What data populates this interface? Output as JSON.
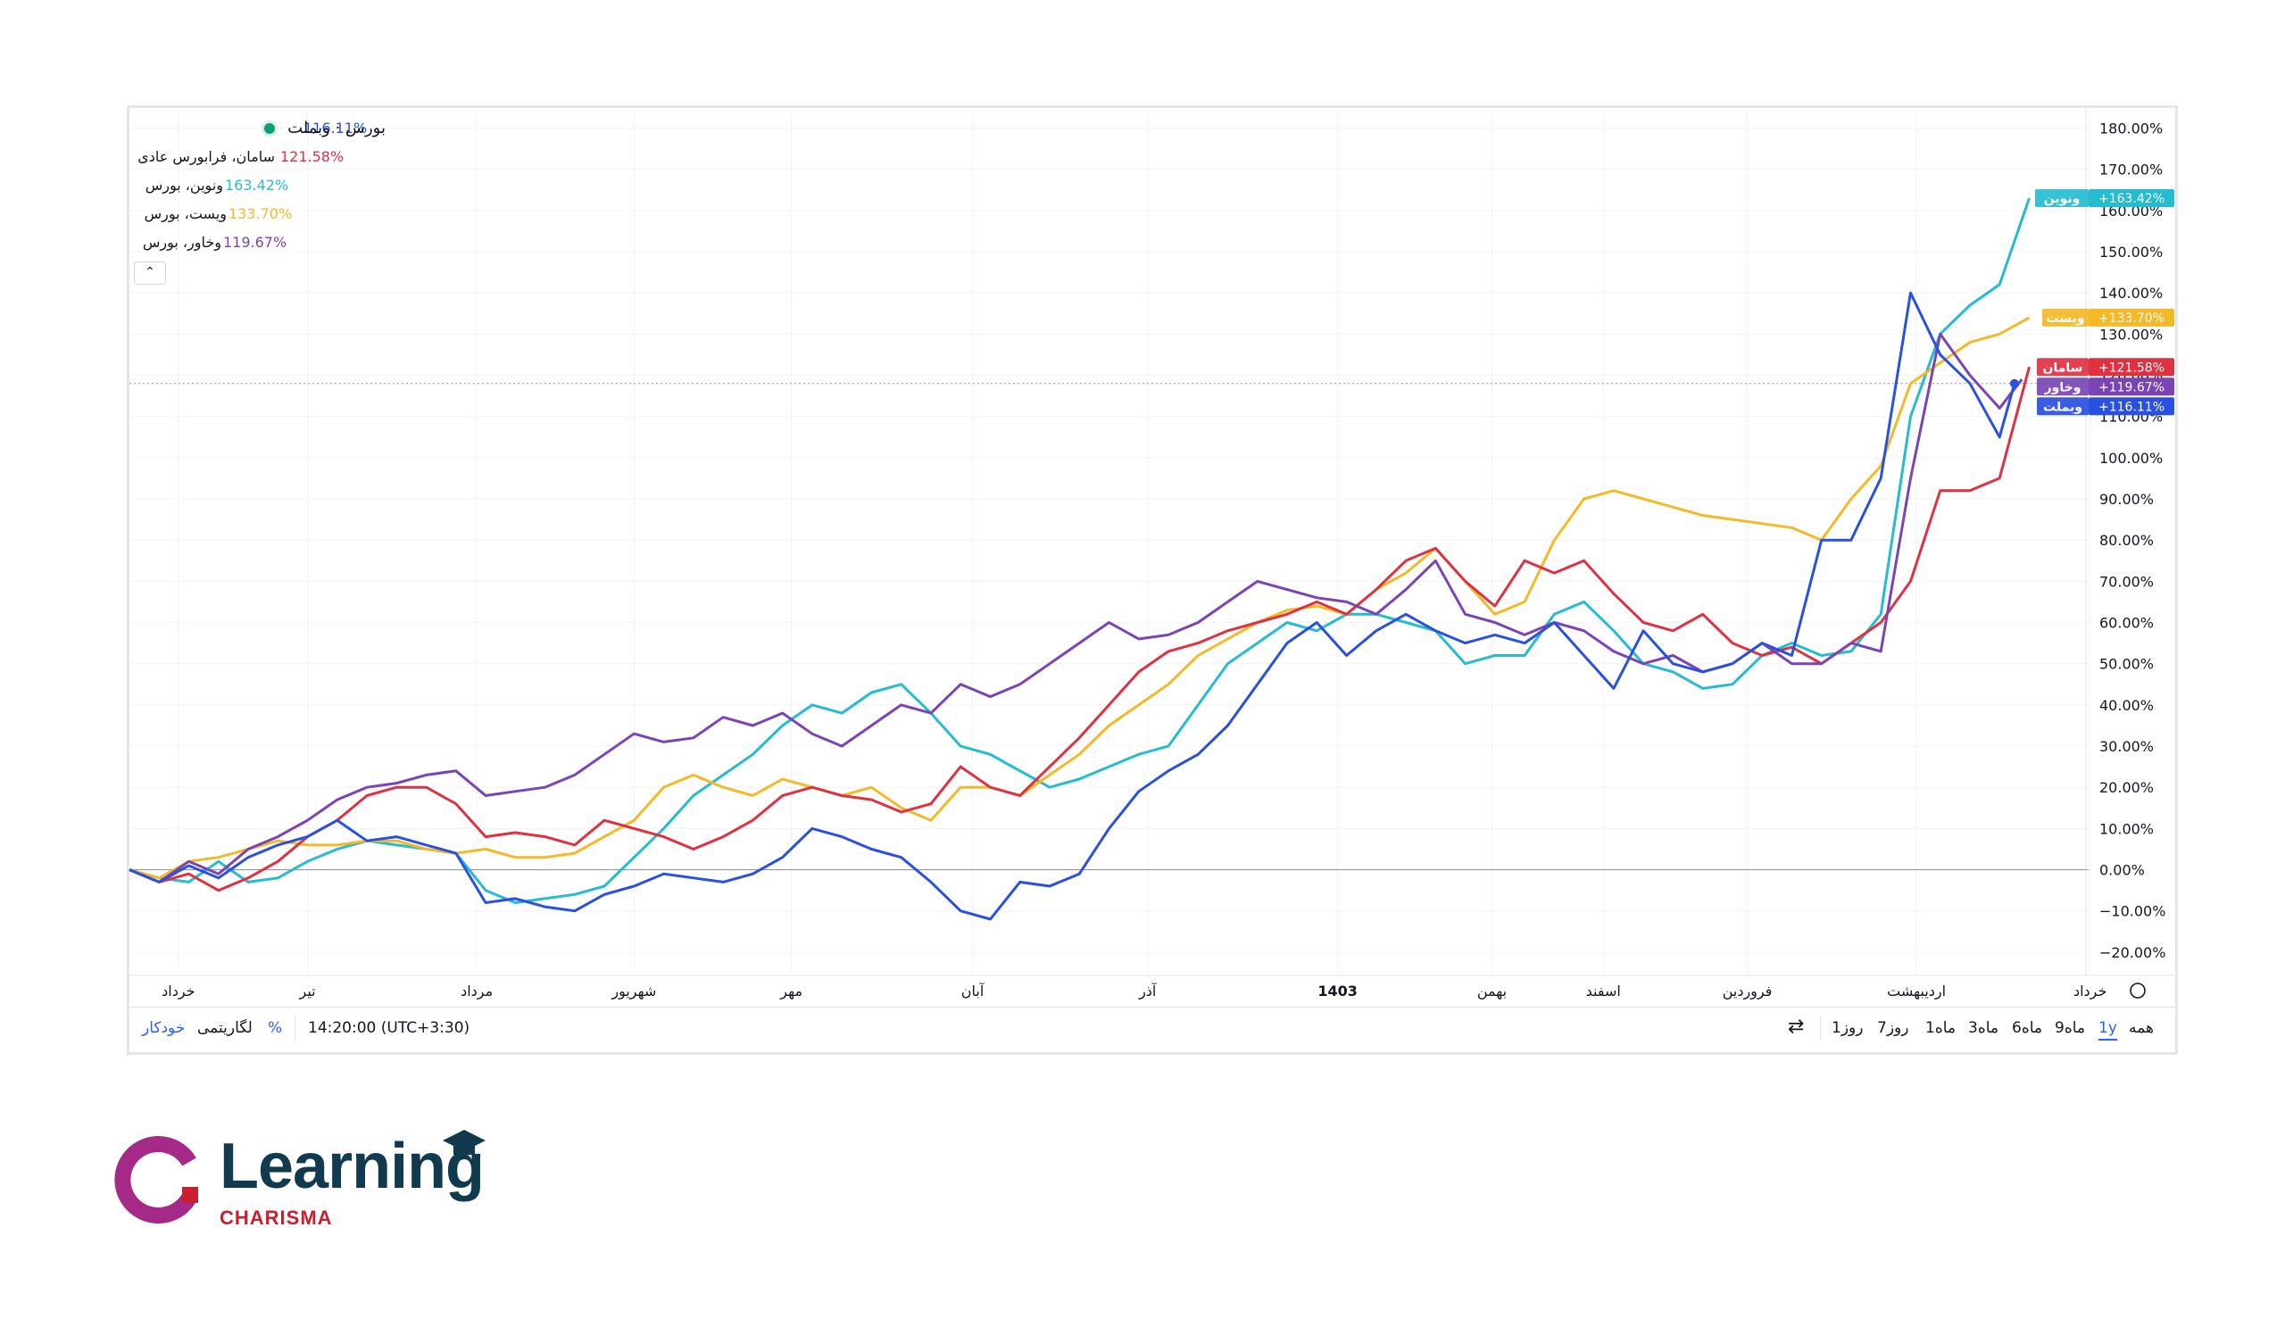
{
  "legend": {
    "main_symbol": "بورس · وبملت",
    "main_value": "116.11%",
    "rows": [
      {
        "name": "سامان، فرابورس عادی",
        "value": "121.58%",
        "color": "#e03143"
      },
      {
        "name": "ونوین، بورس",
        "value": "163.42%",
        "color": "#26bcd0"
      },
      {
        "name": "ویست، بورس",
        "value": "133.70%",
        "color": "#f3b928"
      },
      {
        "name": "وخاور، بورس",
        "value": "119.67%",
        "color": "#7a44b5"
      }
    ],
    "collapse_label": "⌃"
  },
  "bottom_bar": {
    "ranges": [
      "همه",
      "1y",
      "9ماه",
      "6ماه",
      "3ماه",
      "1ماه",
      "7روز",
      "1روز"
    ],
    "active_range": "1y",
    "time": "14:20:00 (UTC+3:30)",
    "percent": "%",
    "log": "لگاریتمی",
    "auto": "خودکار"
  },
  "logo": {
    "title": "Learning",
    "subtitle": "CHARISMA"
  },
  "chart_data": {
    "type": "line",
    "ylim": [
      -25,
      184
    ],
    "y_ticks": [
      180,
      170,
      160,
      150,
      140,
      130,
      120,
      110,
      100,
      90,
      80,
      70,
      60,
      50,
      40,
      30,
      20,
      10,
      0,
      -10,
      -20
    ],
    "y_tick_labels": [
      "180.00%",
      "170.00%",
      "160.00%",
      "150.00%",
      "140.00%",
      "130.00%",
      "120.00%",
      "110.00%",
      "100.00%",
      "90.00%",
      "80.00%",
      "70.00%",
      "60.00%",
      "50.00%",
      "40.00%",
      "30.00%",
      "20.00%",
      "10.00%",
      "0.00%",
      "−10.00%",
      "−20.00%"
    ],
    "x_range": [
      0,
      1320
    ],
    "x_ticks": [
      {
        "x": 33,
        "label": "خرداد"
      },
      {
        "x": 120,
        "label": "تیر"
      },
      {
        "x": 234,
        "label": "مرداد"
      },
      {
        "x": 340,
        "label": "شهریور"
      },
      {
        "x": 446,
        "label": "مهر"
      },
      {
        "x": 568,
        "label": "آبان"
      },
      {
        "x": 686,
        "label": "آذر"
      },
      {
        "x": 814,
        "label": "1403"
      },
      {
        "x": 918,
        "label": "بهمن"
      },
      {
        "x": 993,
        "label": "اسفند"
      },
      {
        "x": 1090,
        "label": "فروردین"
      },
      {
        "x": 1204,
        "label": "اردیبهشت"
      },
      {
        "x": 1321,
        "label": "خرداد"
      }
    ],
    "series": [
      {
        "name": "وبملت",
        "color": "#2950e0",
        "last_label": "+116.11%",
        "x": [
          0,
          20,
          40,
          60,
          80,
          100,
          120,
          140,
          160,
          180,
          200,
          220,
          240,
          260,
          280,
          300,
          320,
          340,
          360,
          380,
          400,
          420,
          440,
          460,
          480,
          500,
          520,
          540,
          560,
          580,
          600,
          620,
          640,
          660,
          680,
          700,
          720,
          740,
          760,
          780,
          800,
          820,
          840,
          860,
          880,
          900,
          920,
          940,
          960,
          980,
          1000,
          1020,
          1040,
          1060,
          1080,
          1100,
          1120,
          1140,
          1160,
          1180,
          1200,
          1220,
          1240,
          1260,
          1270
        ],
        "y": [
          0,
          -3,
          1,
          -2,
          3,
          6,
          8,
          12,
          7,
          8,
          6,
          4,
          -8,
          -7,
          -9,
          -10,
          -6,
          -4,
          -1,
          -2,
          -3,
          -1,
          3,
          10,
          8,
          5,
          3,
          -3,
          -10,
          -12,
          -3,
          -4,
          -1,
          10,
          19,
          24,
          28,
          35,
          45,
          55,
          60,
          52,
          58,
          62,
          58,
          55,
          57,
          55,
          60,
          52,
          44,
          58,
          50,
          48,
          50,
          55,
          52,
          80,
          80,
          95,
          140,
          125,
          118,
          105,
          118
        ]
      },
      {
        "name": "وخاور",
        "color": "#7a44b5",
        "last_label": "+119.67%",
        "x": [
          0,
          20,
          40,
          60,
          80,
          100,
          120,
          140,
          160,
          180,
          200,
          220,
          240,
          260,
          280,
          300,
          320,
          340,
          360,
          380,
          400,
          420,
          440,
          460,
          480,
          500,
          520,
          540,
          560,
          580,
          600,
          620,
          640,
          660,
          680,
          700,
          720,
          740,
          760,
          780,
          800,
          820,
          840,
          860,
          880,
          900,
          920,
          940,
          960,
          980,
          1000,
          1020,
          1040,
          1060,
          1080,
          1100,
          1120,
          1140,
          1160,
          1180,
          1200,
          1220,
          1240,
          1260,
          1275
        ],
        "y": [
          0,
          -3,
          2,
          -1,
          5,
          8,
          12,
          17,
          20,
          21,
          23,
          24,
          18,
          19,
          20,
          23,
          28,
          33,
          31,
          32,
          37,
          35,
          38,
          33,
          30,
          35,
          40,
          38,
          45,
          42,
          45,
          50,
          55,
          60,
          56,
          57,
          60,
          65,
          70,
          68,
          66,
          65,
          62,
          68,
          75,
          62,
          60,
          57,
          60,
          58,
          53,
          50,
          52,
          48,
          50,
          55,
          50,
          50,
          55,
          53,
          95,
          130,
          120,
          112,
          119
        ]
      },
      {
        "name": "سامان",
        "color": "#e03143",
        "last_label": "+121.58%",
        "x": [
          0,
          20,
          40,
          60,
          80,
          100,
          120,
          140,
          160,
          180,
          200,
          220,
          240,
          260,
          280,
          300,
          320,
          340,
          360,
          380,
          400,
          420,
          440,
          460,
          480,
          500,
          520,
          540,
          560,
          580,
          600,
          620,
          640,
          660,
          680,
          700,
          720,
          740,
          760,
          780,
          800,
          820,
          840,
          860,
          880,
          900,
          920,
          940,
          960,
          980,
          1000,
          1020,
          1040,
          1060,
          1080,
          1100,
          1120,
          1140,
          1160,
          1180,
          1200,
          1220,
          1240,
          1260,
          1280
        ],
        "y": [
          0,
          -3,
          -1,
          -5,
          -2,
          2,
          8,
          12,
          18,
          20,
          20,
          16,
          8,
          9,
          8,
          6,
          12,
          10,
          8,
          5,
          8,
          12,
          18,
          20,
          18,
          17,
          14,
          16,
          25,
          20,
          18,
          25,
          32,
          40,
          48,
          53,
          55,
          58,
          60,
          62,
          65,
          62,
          68,
          75,
          78,
          70,
          64,
          75,
          72,
          75,
          67,
          60,
          58,
          62,
          55,
          52,
          54,
          50,
          55,
          60,
          70,
          92,
          92,
          95,
          122
        ]
      },
      {
        "name": "ویست",
        "color": "#f3b928",
        "last_label": "+133.70%",
        "x": [
          0,
          20,
          40,
          60,
          80,
          100,
          120,
          140,
          160,
          180,
          200,
          220,
          240,
          260,
          280,
          300,
          320,
          340,
          360,
          380,
          400,
          420,
          440,
          460,
          480,
          500,
          520,
          540,
          560,
          580,
          600,
          620,
          640,
          660,
          680,
          700,
          720,
          740,
          760,
          780,
          800,
          820,
          840,
          860,
          880,
          900,
          920,
          940,
          960,
          980,
          1000,
          1020,
          1040,
          1060,
          1080,
          1100,
          1120,
          1140,
          1160,
          1180,
          1200,
          1220,
          1240,
          1260,
          1280
        ],
        "y": [
          0,
          -2,
          2,
          3,
          5,
          7,
          6,
          6,
          7,
          7,
          5,
          4,
          5,
          3,
          3,
          4,
          8,
          12,
          20,
          23,
          20,
          18,
          22,
          20,
          18,
          20,
          15,
          12,
          20,
          20,
          18,
          23,
          28,
          35,
          40,
          45,
          52,
          56,
          60,
          63,
          64,
          62,
          68,
          72,
          78,
          70,
          62,
          65,
          80,
          90,
          92,
          90,
          88,
          86,
          85,
          84,
          83,
          80,
          90,
          98,
          118,
          123,
          128,
          130,
          134
        ]
      },
      {
        "name": "ونوین",
        "color": "#26bcd0",
        "last_label": "+163.42%",
        "x": [
          0,
          20,
          40,
          60,
          80,
          100,
          120,
          140,
          160,
          180,
          200,
          220,
          240,
          260,
          280,
          300,
          320,
          340,
          360,
          380,
          400,
          420,
          440,
          460,
          480,
          500,
          520,
          540,
          560,
          580,
          600,
          620,
          640,
          660,
          680,
          700,
          720,
          740,
          760,
          780,
          800,
          820,
          840,
          860,
          880,
          900,
          920,
          940,
          960,
          980,
          1000,
          1020,
          1040,
          1060,
          1080,
          1100,
          1120,
          1140,
          1160,
          1180,
          1200,
          1220,
          1240,
          1260,
          1280
        ],
        "y": [
          0,
          -2,
          -3,
          2,
          -3,
          -2,
          2,
          5,
          7,
          6,
          5,
          4,
          -5,
          -8,
          -7,
          -6,
          -4,
          3,
          10,
          18,
          23,
          28,
          35,
          40,
          38,
          43,
          45,
          38,
          30,
          28,
          24,
          20,
          22,
          25,
          28,
          30,
          40,
          50,
          55,
          60,
          58,
          62,
          62,
          60,
          58,
          50,
          52,
          52,
          62,
          65,
          58,
          50,
          48,
          44,
          45,
          52,
          55,
          52,
          53,
          62,
          110,
          130,
          137,
          142,
          163
        ]
      }
    ]
  }
}
